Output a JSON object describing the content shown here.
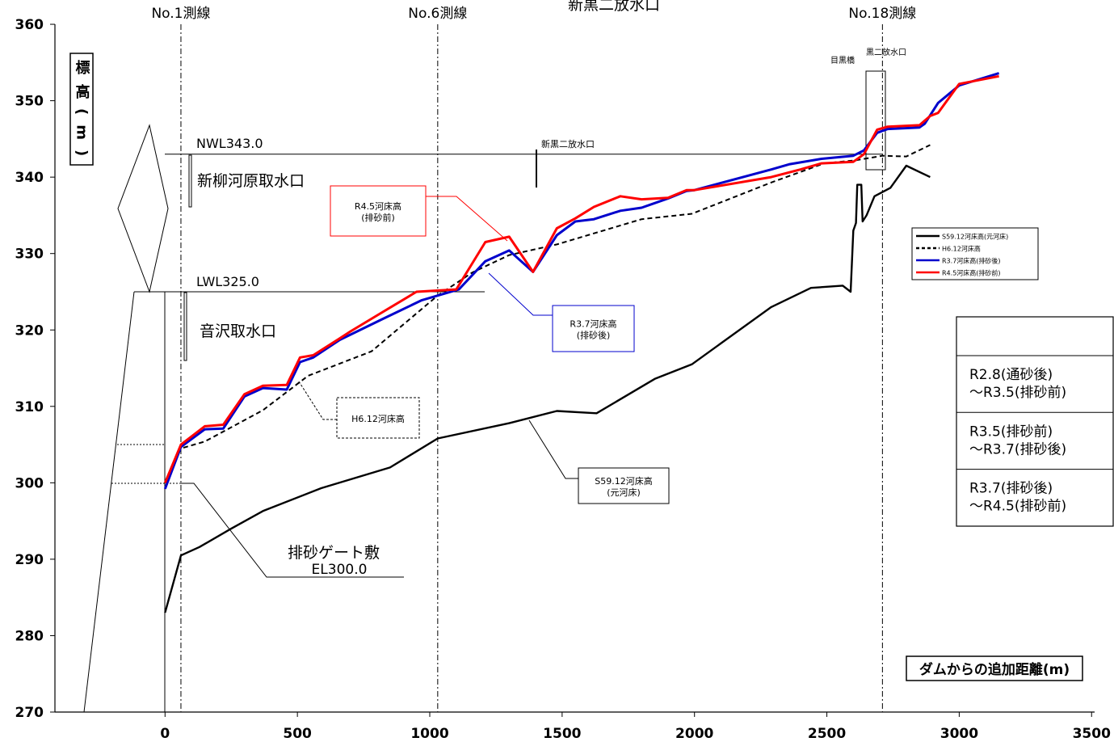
{
  "chart_data": {
    "type": "line",
    "ylabel": "標高(m)",
    "xlabel": "ダムからの追加距離(m)",
    "xlim": [
      -420,
      3500
    ],
    "ylim": [
      270,
      360
    ],
    "x_ticks": [
      0,
      500,
      1000,
      1500,
      2000,
      2500,
      3000,
      3500
    ],
    "y_ticks": [
      270,
      280,
      290,
      300,
      310,
      320,
      330,
      340,
      350,
      360
    ],
    "legend_position": "right",
    "legend": [
      {
        "label": "S59.12河床高(元河床)",
        "color": "#000000",
        "style": "solid"
      },
      {
        "label": "H6.12河床高",
        "color": "#000000",
        "style": "dashed"
      },
      {
        "label": "R3.7河床高(排砂後)",
        "color": "#0000cc",
        "style": "solid"
      },
      {
        "label": "R4.5河床高(排砂前)",
        "color": "#ff0000",
        "style": "solid"
      }
    ],
    "series": [
      {
        "name": "S59.12河床高(元河床)",
        "color": "#000000",
        "dash": "",
        "width": 2.4,
        "points": [
          [
            0,
            283
          ],
          [
            60,
            290.5
          ],
          [
            130,
            291.6
          ],
          [
            250,
            294
          ],
          [
            370,
            296.3
          ],
          [
            590,
            299.3
          ],
          [
            850,
            302
          ],
          [
            1030,
            305.8
          ],
          [
            1300,
            307.8
          ],
          [
            1480,
            309.4
          ],
          [
            1630,
            309.1
          ],
          [
            1850,
            313.6
          ],
          [
            1990,
            315.5
          ],
          [
            2290,
            323
          ],
          [
            2440,
            325.5
          ],
          [
            2560,
            325.8
          ],
          [
            2590,
            325
          ],
          [
            2600,
            333
          ],
          [
            2610,
            334
          ],
          [
            2615,
            339
          ],
          [
            2630,
            339
          ],
          [
            2635,
            334.2
          ],
          [
            2650,
            335
          ],
          [
            2680,
            337.5
          ],
          [
            2740,
            338.6
          ],
          [
            2800,
            341.5
          ],
          [
            2890,
            340
          ]
        ]
      },
      {
        "name": "H6.12河床高",
        "color": "#000000",
        "dash": "6,4",
        "width": 2,
        "points": [
          [
            0,
            300
          ],
          [
            60,
            304.5
          ],
          [
            150,
            305.4
          ],
          [
            370,
            309.5
          ],
          [
            540,
            314
          ],
          [
            780,
            317.2
          ],
          [
            1030,
            324.5
          ],
          [
            1160,
            327.5
          ],
          [
            1300,
            329.8
          ],
          [
            1480,
            331.2
          ],
          [
            1800,
            334.5
          ],
          [
            1990,
            335.2
          ],
          [
            2290,
            339.3
          ],
          [
            2490,
            341.8
          ],
          [
            2610,
            342.2
          ],
          [
            2710,
            342.8
          ],
          [
            2800,
            342.7
          ],
          [
            2890,
            344.2
          ]
        ]
      },
      {
        "name": "R3.7河床高(排砂後)",
        "color": "#0000cc",
        "dash": "",
        "width": 3,
        "points": [
          [
            0,
            299.2
          ],
          [
            60,
            304.7
          ],
          [
            150,
            307
          ],
          [
            220,
            307.1
          ],
          [
            300,
            311.3
          ],
          [
            370,
            312.4
          ],
          [
            460,
            312.2
          ],
          [
            510,
            315.8
          ],
          [
            560,
            316.4
          ],
          [
            660,
            318.7
          ],
          [
            820,
            321.4
          ],
          [
            970,
            323.9
          ],
          [
            1110,
            325.3
          ],
          [
            1210,
            329
          ],
          [
            1300,
            330.4
          ],
          [
            1390,
            327.6
          ],
          [
            1480,
            332.4
          ],
          [
            1550,
            334.2
          ],
          [
            1620,
            334.5
          ],
          [
            1720,
            335.6
          ],
          [
            1800,
            336
          ],
          [
            1900,
            337.2
          ],
          [
            1970,
            338.2
          ],
          [
            2000,
            338.3
          ],
          [
            2290,
            341
          ],
          [
            2360,
            341.7
          ],
          [
            2480,
            342.4
          ],
          [
            2600,
            342.8
          ],
          [
            2640,
            343.5
          ],
          [
            2690,
            345.8
          ],
          [
            2730,
            346.3
          ],
          [
            2850,
            346.5
          ],
          [
            2870,
            347
          ],
          [
            2920,
            349.7
          ],
          [
            3000,
            352
          ],
          [
            3150,
            353.6
          ]
        ]
      },
      {
        "name": "R4.5河床高(排砂前)",
        "color": "#ff0000",
        "dash": "",
        "width": 3,
        "points": [
          [
            0,
            300
          ],
          [
            60,
            305
          ],
          [
            150,
            307.4
          ],
          [
            220,
            307.6
          ],
          [
            300,
            311.6
          ],
          [
            370,
            312.7
          ],
          [
            460,
            312.8
          ],
          [
            510,
            316.4
          ],
          [
            560,
            316.7
          ],
          [
            660,
            318.9
          ],
          [
            700,
            319.8
          ],
          [
            820,
            322.3
          ],
          [
            950,
            325
          ],
          [
            1100,
            325.3
          ],
          [
            1210,
            331.5
          ],
          [
            1300,
            332.2
          ],
          [
            1390,
            327.6
          ],
          [
            1480,
            333.3
          ],
          [
            1550,
            334.6
          ],
          [
            1620,
            336.1
          ],
          [
            1720,
            337.5
          ],
          [
            1800,
            337.1
          ],
          [
            1900,
            337.3
          ],
          [
            1970,
            338.3
          ],
          [
            2000,
            338.3
          ],
          [
            2290,
            340
          ],
          [
            2400,
            341
          ],
          [
            2480,
            341.8
          ],
          [
            2600,
            342
          ],
          [
            2640,
            343
          ],
          [
            2690,
            346.2
          ],
          [
            2730,
            346.6
          ],
          [
            2850,
            346.8
          ],
          [
            2890,
            348
          ],
          [
            2920,
            348.4
          ],
          [
            3000,
            352.2
          ],
          [
            3150,
            353.2
          ]
        ]
      }
    ]
  },
  "annotations": {
    "sokusen1": "No.1測線",
    "sokusen6": "No.6測線",
    "sokusen18": "No.18測線",
    "top_title": "新黒二放水口",
    "nwl": "NWL343.0",
    "lwl": "LWL325.0",
    "intake1": "新柳河原取水口",
    "intake2": "音沢取水口",
    "outlet_small": "新黒二放水口",
    "meguro_bridge": "目黒橋",
    "kuroni_outlet": "黒二放水口",
    "gate": "排砂ゲート敷",
    "gate_el": "EL300.0",
    "callout_r45": [
      "R4.5河床高",
      "(排砂前)"
    ],
    "callout_r37": [
      "R3.7河床高",
      "(排砂後)"
    ],
    "callout_h6": "H6.12河床高",
    "callout_s59": [
      "S59.12河床高",
      "(元河床)"
    ]
  },
  "period_table": {
    "rows": [
      {
        "lines": [
          "R2.8(通砂後)",
          "～R3.5(排砂前)"
        ],
        "color": "#000000"
      },
      {
        "lines": [
          "R3.5(排砂前)",
          "～R3.7(排砂後)"
        ],
        "color": "#000000"
      },
      {
        "lines": [
          "R3.7(排砂後)",
          "～R4.5(排砂前)"
        ],
        "color": "#ff0000"
      }
    ]
  }
}
